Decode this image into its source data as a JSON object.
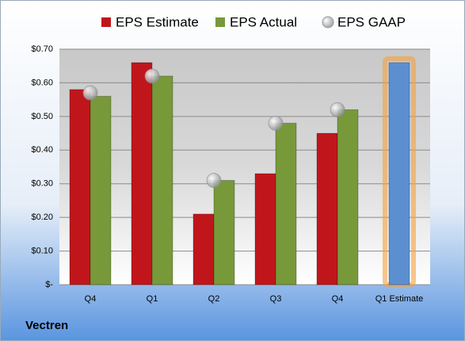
{
  "chart_data": {
    "type": "bar",
    "company": "Vectren",
    "categories": [
      "Q4",
      "Q1",
      "Q2",
      "Q3",
      "Q4",
      "Q1 Estimate"
    ],
    "series": [
      {
        "name": "EPS Estimate",
        "color": "#c0161b",
        "values": [
          0.58,
          0.66,
          0.21,
          0.33,
          0.45,
          0.66
        ],
        "colors": [
          "#c0161b",
          "#c0161b",
          "#c0161b",
          "#c0161b",
          "#c0161b",
          "#5b8fd0"
        ]
      },
      {
        "name": "EPS Actual",
        "color": "#77993a",
        "values": [
          0.56,
          0.62,
          0.31,
          0.48,
          0.52,
          null
        ]
      },
      {
        "name": "EPS GAAP",
        "color": "#a8acb0",
        "marker": "circle",
        "values": [
          0.57,
          0.62,
          0.31,
          0.48,
          0.52,
          null
        ]
      }
    ],
    "ylim": [
      0,
      0.7
    ],
    "yticks": [
      {
        "value": 0,
        "label": "$-"
      },
      {
        "value": 0.1,
        "label": "$0.10"
      },
      {
        "value": 0.2,
        "label": "$0.20"
      },
      {
        "value": 0.3,
        "label": "$0.30"
      },
      {
        "value": 0.4,
        "label": "$0.40"
      },
      {
        "value": 0.5,
        "label": "$0.50"
      },
      {
        "value": 0.6,
        "label": "$0.60"
      },
      {
        "value": 0.7,
        "label": "$0.70"
      }
    ],
    "grid": true
  }
}
